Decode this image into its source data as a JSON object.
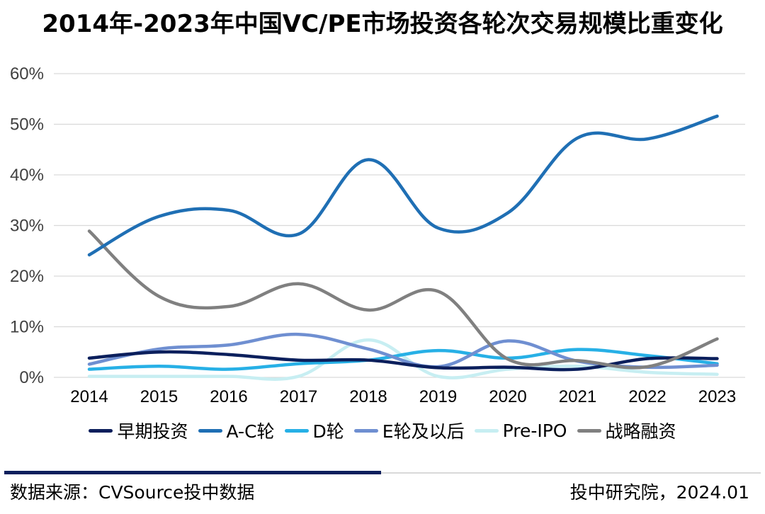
{
  "title": "2014年-2023年中国VC/PE市场投资各轮次交易规模比重变化",
  "chart_data": {
    "type": "line",
    "title": "2014年-2023年中国VC/PE市场投资各轮次交易规模比重变化",
    "xlabel": "",
    "ylabel": "",
    "ylim": [
      0,
      60
    ],
    "y_ticks": [
      "0%",
      "10%",
      "20%",
      "30%",
      "40%",
      "50%",
      "60%"
    ],
    "categories": [
      "2014",
      "2015",
      "2016",
      "2017",
      "2018",
      "2019",
      "2020",
      "2021",
      "2022",
      "2023"
    ],
    "grid": true,
    "legend_position": "bottom",
    "series": [
      {
        "name": "早期投资",
        "color": "#0b1f5c",
        "values": [
          3.8,
          5.0,
          4.5,
          3.4,
          3.4,
          1.9,
          2.0,
          1.6,
          3.7,
          3.7
        ]
      },
      {
        "name": "A-C轮",
        "color": "#1f6fb4",
        "values": [
          24.2,
          31.8,
          33.0,
          28.3,
          43.0,
          29.5,
          32.5,
          47.3,
          47.1,
          51.6
        ]
      },
      {
        "name": "D轮",
        "color": "#27b0e6",
        "values": [
          1.6,
          2.2,
          1.6,
          2.7,
          3.4,
          5.3,
          3.8,
          5.5,
          4.3,
          2.7
        ]
      },
      {
        "name": "E轮及以后",
        "color": "#6f8fd1",
        "values": [
          2.6,
          5.6,
          6.4,
          8.5,
          5.6,
          2.1,
          7.2,
          3.2,
          2.0,
          2.4
        ]
      },
      {
        "name": "Pre-IPO",
        "color": "#c7eef2",
        "values": [
          0.2,
          0.2,
          0.2,
          0.2,
          7.4,
          0.2,
          1.6,
          2.2,
          1.0,
          0.6
        ]
      },
      {
        "name": "战略融资",
        "color": "#808080",
        "values": [
          28.9,
          16.0,
          14.0,
          18.5,
          13.3,
          17.0,
          3.6,
          3.3,
          2.1,
          7.6
        ]
      }
    ]
  },
  "footer": {
    "source": "数据来源：CVSource投中数据",
    "publisher": "投中研究院，2024.01"
  }
}
